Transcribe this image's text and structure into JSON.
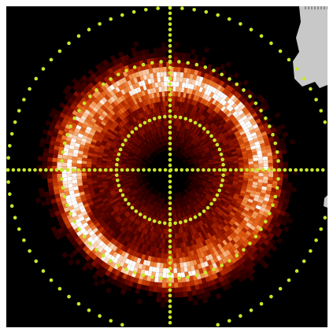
{
  "image": {
    "description_colors": {
      "background": "#000000",
      "frame": "#ffffff",
      "no_data": "#c8c8c8",
      "overlay_dots": "#c8e62a",
      "colormap": [
        "#000000",
        "#3a0000",
        "#7a0a00",
        "#b82a00",
        "#e25a10",
        "#f59a55",
        "#fcd9bf",
        "#ffffff"
      ]
    },
    "overlay": {
      "circles": [
        "inner",
        "middle",
        "outer"
      ],
      "crosshair": true,
      "icon": "polar-grid"
    }
  }
}
